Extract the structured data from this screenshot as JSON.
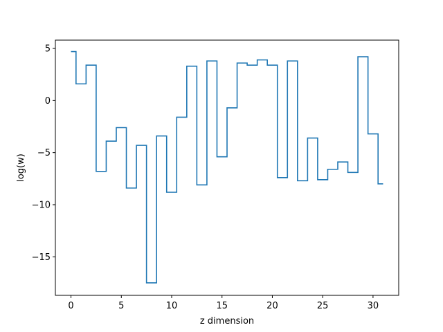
{
  "chart_data": {
    "type": "line",
    "drawstyle": "steps-mid",
    "title": "",
    "xlabel": "z dimension",
    "ylabel": "log(w)",
    "xlim": [
      -1.55,
      32.55
    ],
    "ylim": [
      -18.7,
      5.8
    ],
    "xticks": [
      0,
      5,
      10,
      15,
      20,
      25,
      30
    ],
    "xtick_labels": [
      "0",
      "5",
      "10",
      "15",
      "20",
      "25",
      "30"
    ],
    "yticks": [
      5,
      0,
      -5,
      -10,
      -15
    ],
    "ytick_labels": [
      "5",
      "0",
      "−5",
      "−10",
      "−15"
    ],
    "grid": false,
    "legend": "none",
    "series": [
      {
        "color": "#1f77b4",
        "x": [
          0,
          1,
          2,
          3,
          4,
          5,
          6,
          7,
          8,
          9,
          10,
          11,
          12,
          13,
          14,
          15,
          16,
          17,
          18,
          19,
          20,
          21,
          22,
          23,
          24,
          25,
          26,
          27,
          28,
          29,
          30,
          31
        ],
        "values": [
          4.7,
          1.6,
          3.4,
          -6.8,
          -3.9,
          -2.6,
          -8.4,
          -4.3,
          -17.5,
          -3.4,
          -8.8,
          -1.6,
          3.3,
          -8.1,
          3.8,
          -5.4,
          -0.7,
          3.6,
          3.4,
          3.9,
          3.4,
          -7.4,
          3.8,
          -7.7,
          -3.6,
          -7.6,
          -6.6,
          -5.9,
          -6.9,
          4.2,
          -3.2,
          -8.0
        ]
      }
    ]
  }
}
